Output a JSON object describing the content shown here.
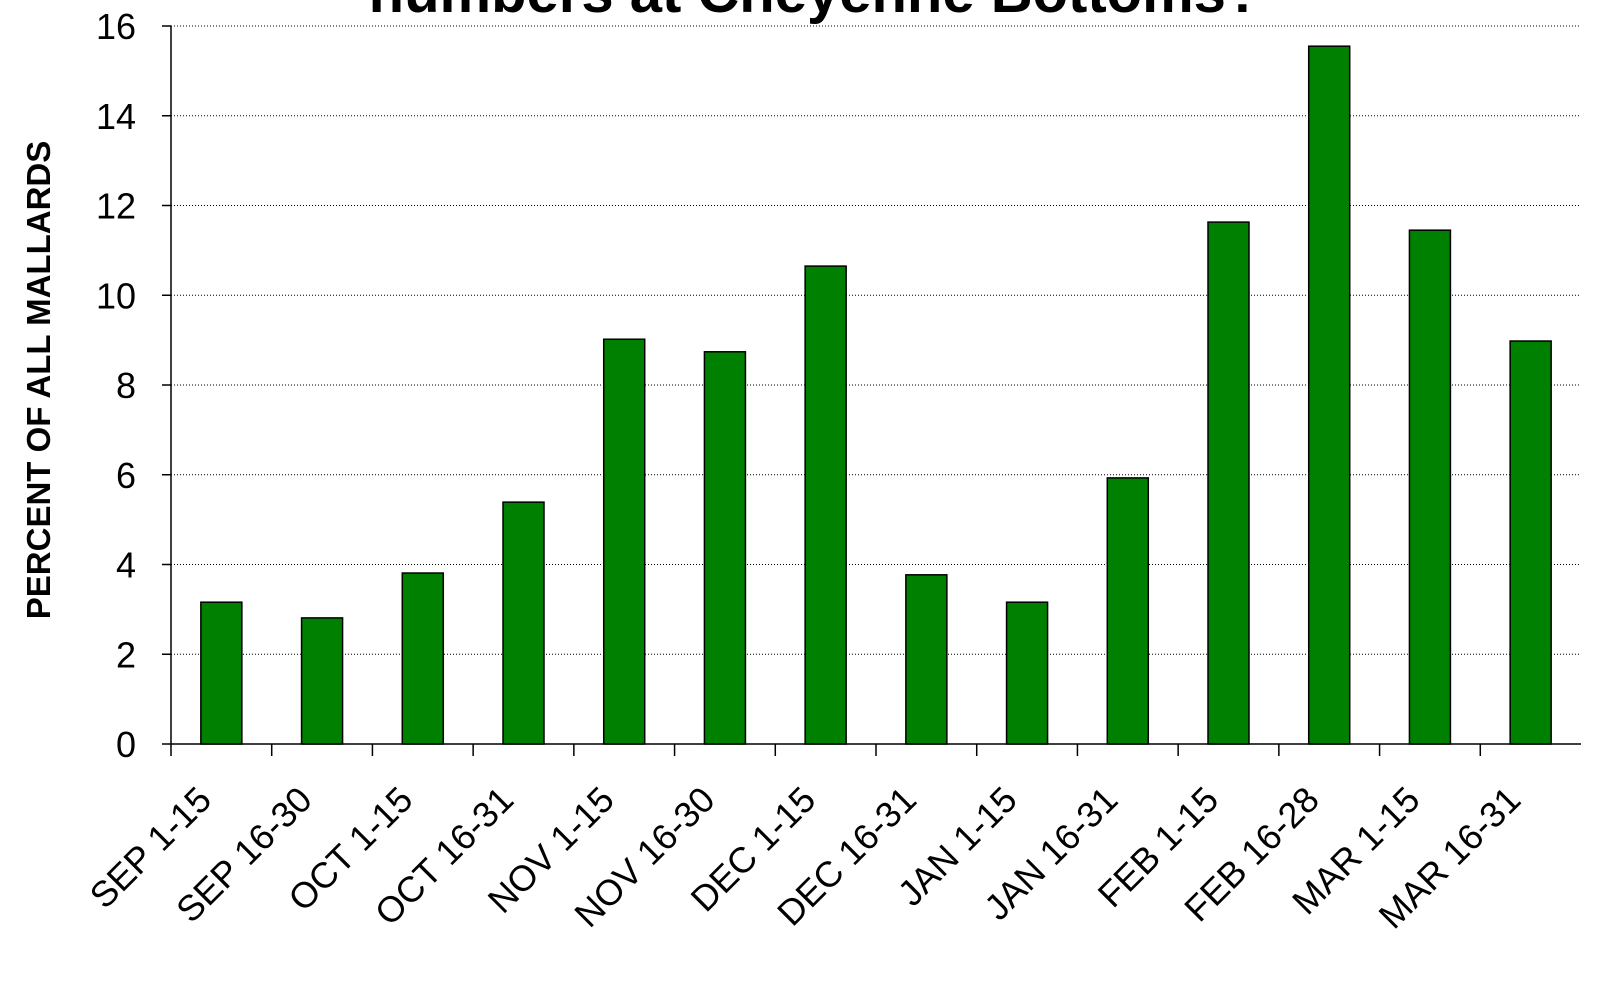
{
  "chart_data": {
    "type": "bar",
    "title": "numbers at Cheyenne Bottoms?",
    "y_label": "PERCENT OF ALL MALLARDS",
    "categories": [
      "SEP 1-15",
      "SEP 16-30",
      "OCT 1-15",
      "OCT 16-31",
      "NOV 1-15",
      "NOV 16-30",
      "DEC 1-15",
      "DEC 16-31",
      "JAN 1-15",
      "JAN 16-31",
      "FEB 1-15",
      "FEB 16-28",
      "MAR 1-15",
      "MAR 16-31"
    ],
    "values": [
      3.16,
      2.81,
      3.81,
      5.39,
      9.02,
      8.74,
      10.65,
      3.77,
      3.16,
      5.93,
      11.63,
      15.55,
      11.45,
      8.98
    ],
    "color": "#008000",
    "ylim": [
      0,
      16
    ],
    "yticks": [
      0,
      2,
      4,
      6,
      8,
      10,
      12,
      14,
      16
    ],
    "grid": true
  }
}
